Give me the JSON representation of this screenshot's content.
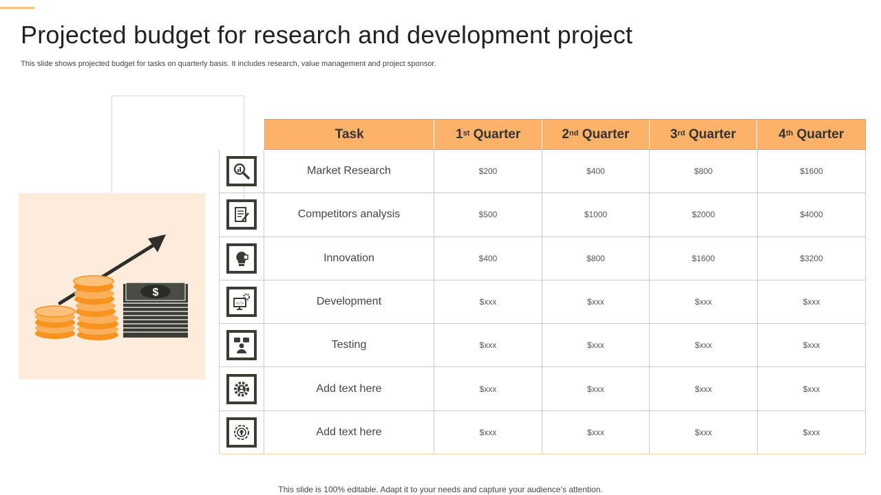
{
  "slide": {
    "title": "Projected budget for research and development project",
    "subtitle": "This slide shows projected budget for tasks on quarterly basis. It includes research, value management and project sponsor.",
    "footer": "This slide is 100% editable. Adapt it to your needs and capture your audience’s attention."
  },
  "colors": {
    "header_bg": "#fdb26a",
    "panel_bg": "#fdebdb",
    "icon_bg": "#3b3d35",
    "coin": "#f7931e"
  },
  "table": {
    "headers": [
      {
        "main": "Task",
        "sup": "",
        "rest": ""
      },
      {
        "main": "1",
        "sup": "st",
        "rest": " Quarter"
      },
      {
        "main": "2",
        "sup": "nd",
        "rest": " Quarter"
      },
      {
        "main": "3",
        "sup": "rd",
        "rest": " Quarter"
      },
      {
        "main": "4",
        "sup": "th",
        "rest": " Quarter"
      }
    ],
    "rows": [
      {
        "icon": "magnifier-chart-icon",
        "task": "Market Research",
        "q1": "$200",
        "q2": "$400",
        "q3": "$800",
        "q4": "$1600"
      },
      {
        "icon": "document-pen-icon",
        "task": "Competitors analysis",
        "q1": "$500",
        "q2": "$1000",
        "q3": "$2000",
        "q4": "$4000"
      },
      {
        "icon": "lightbulb-puzzle-icon",
        "task": "Innovation",
        "q1": "$400",
        "q2": "$800",
        "q3": "$1600",
        "q4": "$3200"
      },
      {
        "icon": "code-monitor-gear-icon",
        "task": "Development",
        "q1": "$xxx",
        "q2": "$xxx",
        "q3": "$xxx",
        "q4": "$xxx"
      },
      {
        "icon": "person-chat-icon",
        "task": "Testing",
        "q1": "$xxx",
        "q2": "$xxx",
        "q3": "$xxx",
        "q4": "$xxx"
      },
      {
        "icon": "gear-team-icon",
        "task": "Add text here",
        "q1": "$xxx",
        "q2": "$xxx",
        "q3": "$xxx",
        "q4": "$xxx"
      },
      {
        "icon": "target-bulb-icon",
        "task": "Add text here",
        "q1": "$xxx",
        "q2": "$xxx",
        "q3": "$xxx",
        "q4": "$xxx"
      }
    ]
  },
  "illustration": {
    "icon": "coins-cash-growth-icon",
    "dollar_sign": "$"
  }
}
